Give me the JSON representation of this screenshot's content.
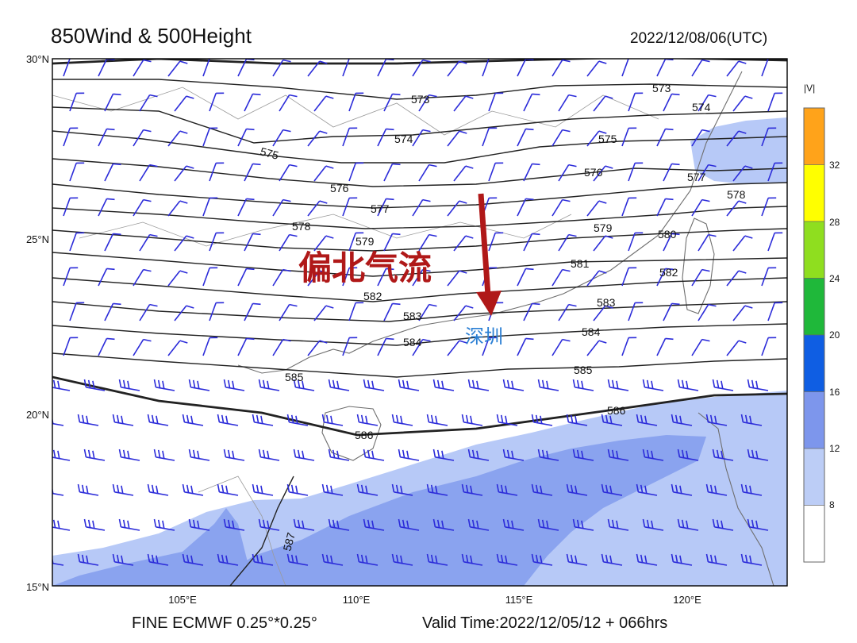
{
  "header": {
    "title": "850Wind & 500Height",
    "valid_utc": "2022/12/08/06(UTC)"
  },
  "footer": {
    "model": "FINE ECMWF 0.25°*0.25°",
    "valid_time": "Valid Time:2022/12/05/12 + 066hrs"
  },
  "map": {
    "lon_range": [
      101,
      123
    ],
    "lat_range": [
      15,
      30
    ],
    "lat_ticks": [
      "30°N",
      "25°N",
      "20°N",
      "15°N"
    ],
    "lon_ticks": [
      "105°E",
      "110°E",
      "115°E",
      "120°E"
    ],
    "annotation": "偏北气流",
    "city_label": "深圳",
    "contour_labels": [
      "573",
      "573",
      "574",
      "574",
      "575",
      "575",
      "576",
      "576",
      "577",
      "577",
      "578",
      "578",
      "579",
      "579",
      "580",
      "581",
      "582",
      "582",
      "583",
      "583",
      "584",
      "584",
      "585",
      "585",
      "586",
      "586",
      "587"
    ],
    "colors": {
      "annotation": "#b01818",
      "arrow": "#b01818",
      "city": "#2a7fd4",
      "wind_barb": "#2b2bd9",
      "shade_light": "#b7c9f7",
      "shade_medium": "#8aa3ef"
    }
  },
  "colorbar": {
    "title": "|V|",
    "labels": [
      "32",
      "28",
      "24",
      "20",
      "16",
      "12",
      "8"
    ],
    "colors": [
      "#ffa31a",
      "#ffff00",
      "#8fde1f",
      "#1fb83a",
      "#0f5ee3",
      "#7d96ec",
      "#bccdf6",
      "#ffffff"
    ]
  }
}
